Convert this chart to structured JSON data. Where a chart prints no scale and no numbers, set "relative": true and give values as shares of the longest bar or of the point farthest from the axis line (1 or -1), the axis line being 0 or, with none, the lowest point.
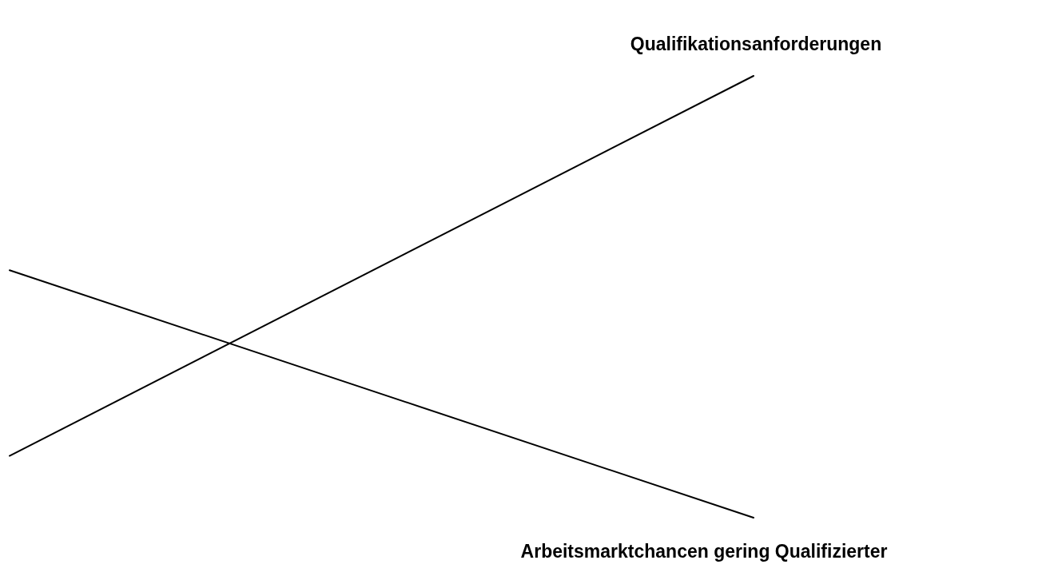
{
  "chart_data": {
    "type": "line",
    "relative": true,
    "categories": [
      null,
      null
    ],
    "legend": false,
    "grid": false,
    "marker": "none",
    "line_style": "solid",
    "series": [
      {
        "name": "Qualifikationsanforderungen",
        "color": "#000000",
        "values": [
          0.14,
          1
        ]
      },
      {
        "name": "Arbeitsmarktchancen gering Qualifizierter",
        "color": "#000000",
        "values": [
          0.56,
          0
        ]
      }
    ]
  }
}
